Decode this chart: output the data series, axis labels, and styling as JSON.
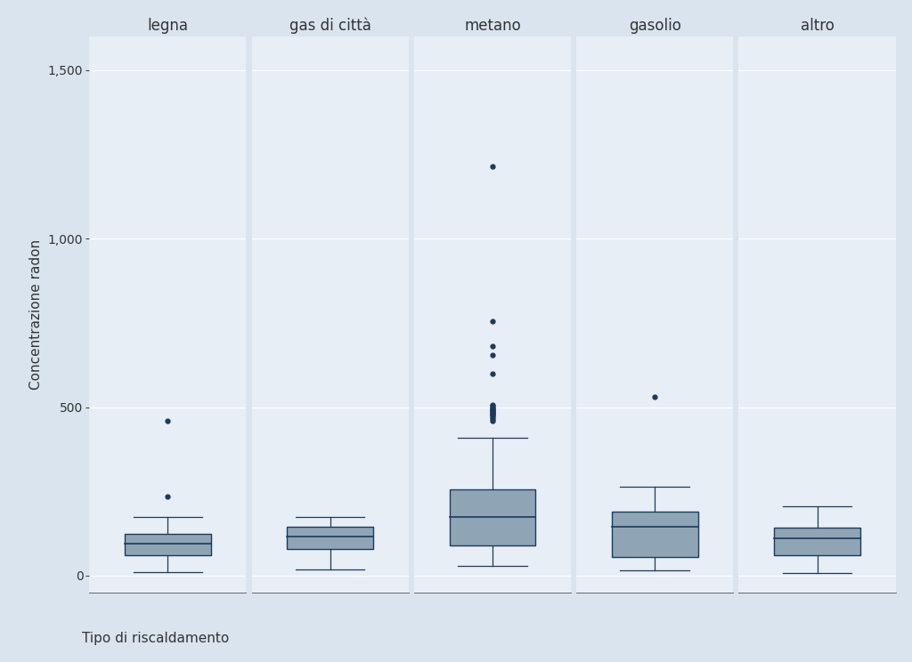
{
  "categories": [
    "legna",
    "gas di città",
    "metano",
    "gasolio",
    "altro"
  ],
  "ylabel": "Concentrazione radon",
  "xlabel": "Tipo di riscaldamento",
  "ylim": [
    -50,
    1600
  ],
  "yticks": [
    0,
    500,
    1000,
    1500
  ],
  "ytick_labels": [
    "0",
    "500",
    "1,000",
    "1,500"
  ],
  "background_color": "#d9e4ee",
  "panel_color": "#e8eef5",
  "box_facecolor": "#8fa5b5",
  "box_edgecolor": "#1b3a5c",
  "median_color": "#1b3a5c",
  "whisker_color": "#1b3a5c",
  "outlier_color": "#1b3a5c",
  "grid_color": "#ffffff",
  "spine_color": "#666666",
  "boxes": [
    {
      "q1": 60,
      "median": 95,
      "q3": 125,
      "whisker_low": 10,
      "whisker_high": 175,
      "outliers": [
        235,
        460
      ]
    },
    {
      "q1": 80,
      "median": 115,
      "q3": 145,
      "whisker_low": 18,
      "whisker_high": 175,
      "outliers": []
    },
    {
      "q1": 90,
      "median": 175,
      "q3": 255,
      "whisker_low": 28,
      "whisker_high": 410,
      "outliers": [
        460,
        465,
        470,
        475,
        478,
        480,
        483,
        485,
        488,
        490,
        493,
        496,
        500,
        505,
        508,
        600,
        655,
        680,
        755,
        1215
      ]
    },
    {
      "q1": 55,
      "median": 145,
      "q3": 190,
      "whisker_low": 15,
      "whisker_high": 265,
      "outliers": [
        530
      ]
    },
    {
      "q1": 60,
      "median": 110,
      "q3": 143,
      "whisker_low": 8,
      "whisker_high": 207,
      "outliers": []
    }
  ],
  "title_fontsize": 12,
  "label_fontsize": 11,
  "tick_fontsize": 10
}
